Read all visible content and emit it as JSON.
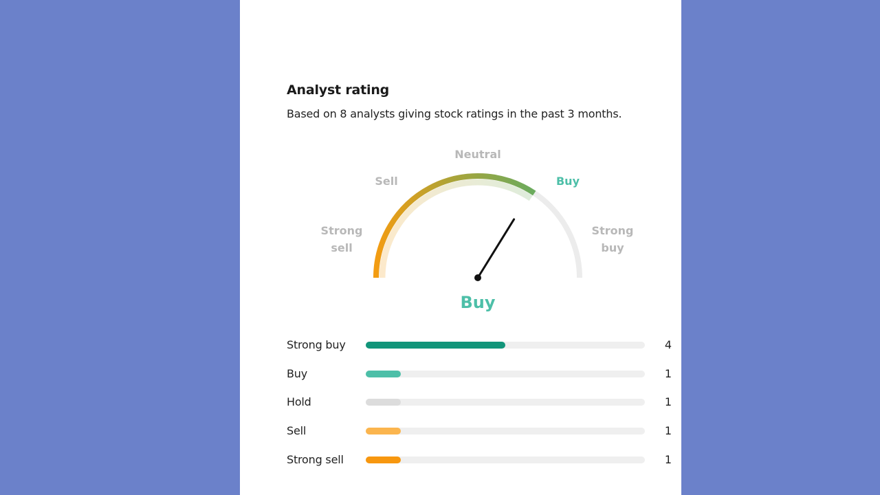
{
  "header": {
    "title": "Analyst rating",
    "subtitle": "Based on 8 analysts giving stock ratings in the past 3 months."
  },
  "gauge": {
    "labels": {
      "strong_sell_1": "Strong",
      "strong_sell_2": "sell",
      "sell": "Sell",
      "neutral": "Neutral",
      "buy": "Buy",
      "strong_buy_1": "Strong",
      "strong_buy_2": "buy"
    },
    "verdict": "Buy",
    "scale": [
      1,
      5
    ],
    "needle_value": 3.75,
    "colors": {
      "start": "#f39c12",
      "mid": "#a8a43a",
      "end": "#6aab5e",
      "track": "#ececec",
      "verdict": "#4dbfa8"
    }
  },
  "breakdown": {
    "total": 8,
    "rows": [
      {
        "label": "Strong buy",
        "count": "4",
        "value": 4,
        "color": "#12957a"
      },
      {
        "label": "Buy",
        "count": "1",
        "value": 1,
        "color": "#4dbfa8"
      },
      {
        "label": "Hold",
        "count": "1",
        "value": 1,
        "color": "#dcdcdc"
      },
      {
        "label": "Sell",
        "count": "1",
        "value": 1,
        "color": "#fbb54e"
      },
      {
        "label": "Strong sell",
        "count": "1",
        "value": 1,
        "color": "#f7970f"
      }
    ]
  }
}
